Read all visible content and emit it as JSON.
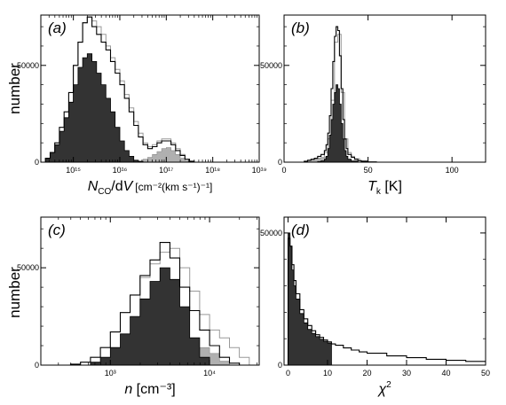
{
  "chart_data": [
    {
      "type": "histogram",
      "panel_label": "(a)",
      "ylabel": "number",
      "xlabel_main": "N",
      "xlabel_sub": "CO",
      "xlabel_after": "/dV",
      "xlabel_unit": "[cm⁻²(km s⁻¹)⁻¹]",
      "xscale": "log",
      "xlim": [
        14.3,
        19.0
      ],
      "ylim": [
        0,
        76000
      ],
      "ytick_labels": [
        "0",
        "50000"
      ],
      "xtick_labels": [
        "10¹⁵",
        "10¹⁶",
        "10¹⁷",
        "10¹⁸",
        "10¹⁹"
      ],
      "xtick_values": [
        15,
        16,
        17,
        18,
        19
      ],
      "grid": false,
      "series": [
        {
          "style": "outline-black",
          "x": [
            14.3,
            14.4,
            14.5,
            14.6,
            14.7,
            14.8,
            14.9,
            15.0,
            15.1,
            15.2,
            15.3,
            15.4,
            15.5,
            15.6,
            15.7,
            15.8,
            15.9,
            16.0,
            16.1,
            16.2,
            16.3,
            16.4,
            16.5,
            16.6,
            16.7,
            16.8,
            16.9,
            17.0,
            17.1,
            17.2,
            17.3,
            17.4,
            17.5,
            17.6
          ],
          "y": [
            0,
            2000,
            5000,
            10000,
            18000,
            26000,
            36000,
            50000,
            62000,
            72000,
            75000,
            70000,
            66000,
            62000,
            58000,
            52000,
            46000,
            40000,
            33000,
            26000,
            19000,
            13000,
            9000,
            7000,
            8000,
            10000,
            11000,
            11000,
            9000,
            6000,
            3500,
            1500,
            500,
            0
          ]
        },
        {
          "style": "outline-gray",
          "x": [
            15.0,
            15.1,
            15.2,
            15.3,
            15.4,
            15.5,
            15.6,
            15.7,
            15.8,
            15.9,
            16.0,
            16.1,
            16.2,
            16.3,
            16.4,
            16.5,
            16.6,
            16.7,
            16.8,
            16.9,
            17.0,
            17.1,
            17.2,
            17.3,
            17.4,
            17.5
          ],
          "y": [
            50000,
            62000,
            72000,
            75000,
            73000,
            70000,
            66000,
            60000,
            54000,
            48000,
            42000,
            35000,
            28000,
            21000,
            15000,
            10000,
            8000,
            9000,
            11000,
            12000,
            12000,
            10000,
            7000,
            4000,
            1500,
            0
          ]
        },
        {
          "style": "fill-dark",
          "x": [
            14.3,
            14.4,
            14.5,
            14.6,
            14.7,
            14.8,
            14.9,
            15.0,
            15.1,
            15.2,
            15.3,
            15.4,
            15.5,
            15.6,
            15.7,
            15.8,
            15.9,
            16.0,
            16.1,
            16.2,
            16.3,
            16.4,
            16.5
          ],
          "y": [
            0,
            2000,
            5000,
            9000,
            16000,
            23000,
            31000,
            40000,
            49000,
            54000,
            56000,
            52000,
            46000,
            40000,
            33000,
            26000,
            18000,
            11000,
            6000,
            3000,
            1000,
            300,
            0
          ]
        },
        {
          "style": "fill-gray",
          "x": [
            16.3,
            16.4,
            16.5,
            16.6,
            16.7,
            16.8,
            16.9,
            17.0,
            17.1,
            17.2,
            17.3,
            17.4,
            17.5
          ],
          "y": [
            300,
            700,
            1500,
            2500,
            4000,
            5500,
            7000,
            7500,
            6000,
            4000,
            2000,
            700,
            0
          ]
        }
      ]
    },
    {
      "type": "histogram",
      "panel_label": "(b)",
      "xlabel_main": "T",
      "xlabel_sub": "k",
      "xlabel_after": " [K]",
      "xlim": [
        0,
        120
      ],
      "ylim": [
        0,
        76000
      ],
      "ytick_labels": [
        "0",
        "50000"
      ],
      "xtick_labels": [
        "0",
        "50",
        "100"
      ],
      "xtick_values": [
        0,
        50,
        100
      ],
      "grid": false,
      "series": [
        {
          "style": "outline-black",
          "x": [
            10,
            12,
            14,
            16,
            18,
            20,
            22,
            24,
            25,
            26,
            27,
            28,
            29,
            30,
            31,
            32,
            33,
            34,
            35,
            36,
            37,
            38,
            40,
            42,
            44,
            46,
            50,
            55
          ],
          "y": [
            0,
            500,
            1000,
            1500,
            2000,
            3000,
            4000,
            6000,
            9000,
            15000,
            24000,
            38000,
            52000,
            65000,
            70000,
            68000,
            55000,
            38000,
            22000,
            12000,
            7000,
            4000,
            2500,
            1500,
            800,
            400,
            150,
            0
          ]
        },
        {
          "style": "outline-gray",
          "x": [
            12,
            16,
            20,
            24,
            26,
            28,
            30,
            32,
            34,
            36,
            38,
            40,
            42,
            45,
            50
          ],
          "y": [
            0,
            1000,
            2000,
            5000,
            12000,
            32000,
            62000,
            66000,
            36000,
            12000,
            5000,
            3000,
            1800,
            800,
            0
          ]
        },
        {
          "style": "fill-dark",
          "x": [
            18,
            20,
            22,
            24,
            25,
            26,
            27,
            28,
            29,
            30,
            31,
            32,
            33,
            34,
            35,
            36,
            37,
            38,
            40,
            44
          ],
          "y": [
            0,
            300,
            700,
            1500,
            3000,
            7000,
            14000,
            22000,
            30000,
            36000,
            40000,
            38000,
            30000,
            20000,
            12000,
            6000,
            3000,
            1500,
            600,
            0
          ]
        },
        {
          "style": "fill-gray",
          "x": [
            10,
            12,
            14,
            16,
            18,
            20,
            22,
            24,
            26,
            28,
            30,
            32
          ],
          "y": [
            0,
            300,
            800,
            1200,
            1800,
            2200,
            2500,
            2700,
            2500,
            1800,
            800,
            0
          ]
        }
      ]
    },
    {
      "type": "histogram",
      "panel_label": "(c)",
      "ylabel": "number",
      "xlabel_main": "n",
      "xlabel_after": " [cm⁻³]",
      "xscale": "log",
      "xlim": [
        2.3,
        4.5
      ],
      "ylim": [
        0,
        76000
      ],
      "ytick_labels": [
        "0",
        "50000"
      ],
      "xtick_labels": [
        "10³",
        "10⁴"
      ],
      "xtick_values": [
        3,
        4
      ],
      "grid": false,
      "series": [
        {
          "style": "outline-black",
          "x": [
            2.5,
            2.6,
            2.7,
            2.8,
            2.9,
            3.0,
            3.1,
            3.2,
            3.3,
            3.4,
            3.5,
            3.6,
            3.7,
            3.8,
            3.9,
            4.0,
            4.1,
            4.2,
            4.3
          ],
          "y": [
            0,
            500,
            1500,
            4000,
            9000,
            17000,
            27000,
            36000,
            46000,
            54000,
            63000,
            55000,
            40000,
            28000,
            18000,
            10000,
            4000,
            1000,
            0
          ]
        },
        {
          "style": "outline-gray",
          "x": [
            3.3,
            3.4,
            3.5,
            3.6,
            3.7,
            3.8,
            3.9,
            4.0,
            4.1,
            4.2,
            4.3,
            4.4
          ],
          "y": [
            45000,
            52000,
            58000,
            60000,
            50000,
            38000,
            26000,
            18000,
            14000,
            9000,
            4000,
            0
          ]
        },
        {
          "style": "fill-dark",
          "x": [
            2.7,
            2.8,
            2.9,
            3.0,
            3.1,
            3.2,
            3.3,
            3.4,
            3.5,
            3.6,
            3.7,
            3.8,
            3.9,
            4.0
          ],
          "y": [
            0,
            1500,
            4000,
            9000,
            16000,
            25000,
            34000,
            43000,
            50000,
            44000,
            30000,
            14000,
            4000,
            0
          ]
        },
        {
          "style": "fill-gray",
          "x": [
            3.5,
            3.6,
            3.7,
            3.8,
            3.9,
            4.0,
            4.1,
            4.2
          ],
          "y": [
            800,
            2500,
            5000,
            8000,
            9000,
            6000,
            2000,
            0
          ]
        }
      ]
    },
    {
      "type": "histogram",
      "panel_label": "(d)",
      "xlabel_main": "χ",
      "xlabel_sup": "2",
      "xlim": [
        -1,
        50
      ],
      "ylim": [
        0,
        56000
      ],
      "ytick_labels": [
        "0",
        "50000"
      ],
      "xtick_labels": [
        "0",
        "10",
        "20",
        "30",
        "40",
        "50"
      ],
      "xtick_values": [
        0,
        10,
        20,
        30,
        40,
        50
      ],
      "grid": false,
      "series": [
        {
          "style": "outline-black",
          "x": [
            0,
            0.5,
            1,
            1.5,
            2,
            3,
            4,
            5,
            6,
            7,
            8,
            9,
            10,
            11,
            12,
            14,
            16,
            18,
            20,
            25,
            30,
            35,
            40,
            45,
            50
          ],
          "y": [
            48000,
            45000,
            38000,
            32000,
            27000,
            21000,
            17500,
            15000,
            13000,
            11500,
            10500,
            9500,
            8800,
            8000,
            7500,
            6500,
            5700,
            5000,
            4500,
            3500,
            2800,
            2200,
            1800,
            1400,
            1100
          ]
        },
        {
          "style": "fill-dark",
          "x": [
            0,
            0.5,
            1,
            1.5,
            2,
            3,
            4,
            5,
            6,
            7,
            8,
            9,
            10,
            11
          ],
          "y": [
            50000,
            45000,
            36000,
            30000,
            25000,
            19500,
            16000,
            13500,
            12000,
            10800,
            9800,
            9000,
            8300,
            0
          ]
        },
        {
          "style": "fill-gray",
          "x": [
            0,
            1,
            2,
            4,
            6,
            8,
            11
          ],
          "y": [
            3000,
            2500,
            1800,
            1500,
            1200,
            1000,
            0
          ]
        }
      ]
    }
  ]
}
